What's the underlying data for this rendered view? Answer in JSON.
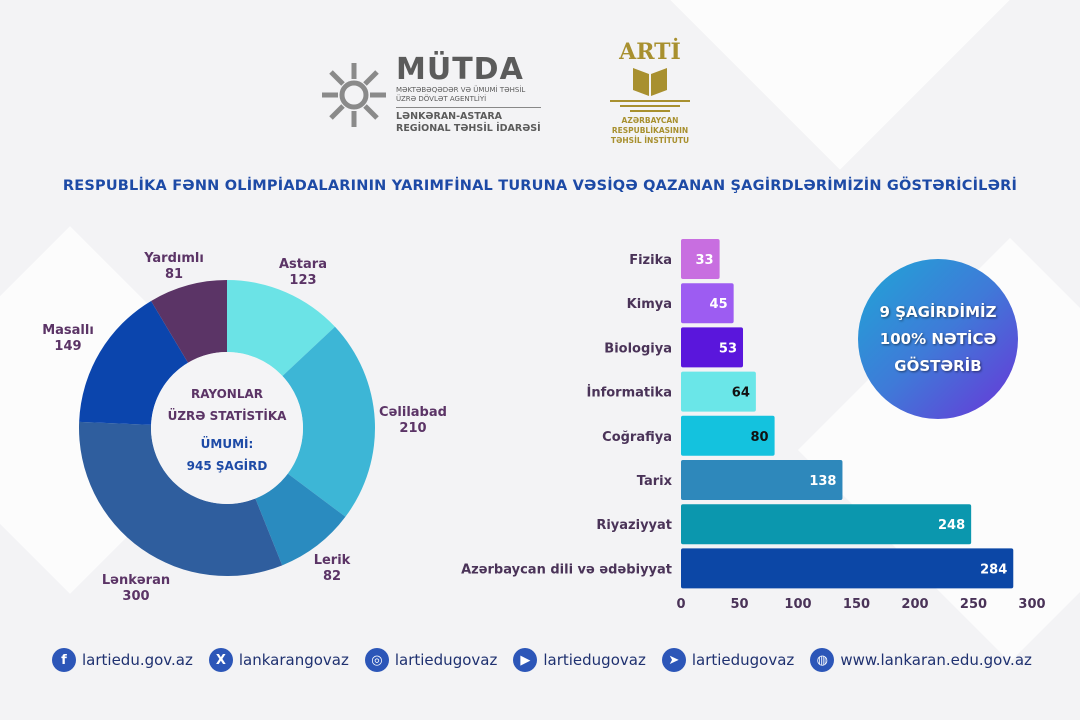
{
  "logos": {
    "mutda": {
      "name": "MÜTDA",
      "line1": "MƏKTƏBƏQƏDƏR VƏ ÜMUMİ TƏHSİL",
      "line2": "ÜZRƏ DÖVLƏT AGENTLİYİ",
      "line3": "LƏNKƏRAN-ASTARA",
      "line4": "REGİONAL TƏHSİL İDARƏSİ"
    },
    "arti": {
      "name": "ARTİ",
      "line1": "AZƏRBAYCAN RESPUBLİKASININ",
      "line2": "TƏHSİL İNSTİTUTU"
    }
  },
  "title": "RESPUBLİKA FƏNN OLİMPİADALARININ YARIMFİNAL TURUNA VƏSİQƏ QAZANAN ŞAGİRDLƏRİMİZİN GÖSTƏRİCİLƏRİ",
  "chart_data": [
    {
      "type": "pie",
      "donut": true,
      "center_text": {
        "line1": "RAYONLAR",
        "line2": "ÜZRƏ STATİSTİKA",
        "line3": "ÜMUMİ:",
        "line4": "945 ŞAGİRD"
      },
      "categories": [
        "Astara",
        "Cəlilabad",
        "Lerik",
        "Lənkəran",
        "Masallı",
        "Yardımlı"
      ],
      "values": [
        123,
        210,
        82,
        300,
        149,
        81
      ],
      "colors": [
        "#6be3e6",
        "#3db6d6",
        "#2a8bbf",
        "#2f5e9e",
        "#0b45ad",
        "#5b3466"
      ]
    },
    {
      "type": "bar",
      "orientation": "horizontal",
      "categories": [
        "Fizika",
        "Kimya",
        "Biologiya",
        "İnformatika",
        "Coğrafiya",
        "Tarix",
        "Riyaziyyat",
        "Azərbaycan dili və ədəbiyyat"
      ],
      "values": [
        33,
        45,
        53,
        64,
        80,
        138,
        248,
        284
      ],
      "colors": [
        "#c86ee0",
        "#9d5cf2",
        "#5a16dc",
        "#6ae6e8",
        "#14c2de",
        "#2e88bb",
        "#0b97ae",
        "#0c47a6"
      ],
      "xlim": [
        0,
        300
      ],
      "xticks": [
        "0",
        "50",
        "100",
        "150",
        "200",
        "250",
        "300"
      ],
      "grid": false
    }
  ],
  "badge": {
    "line1": "9 ŞAGİRDİMİZ",
    "line2": "100% NƏTİCƏ",
    "line3": "GÖSTƏRİB"
  },
  "footer": [
    {
      "icon": "facebook-icon",
      "glyph": "f",
      "text": "lartiedu.gov.az"
    },
    {
      "icon": "x-icon",
      "glyph": "X",
      "text": "lankarangovaz"
    },
    {
      "icon": "instagram-icon",
      "glyph": "◎",
      "text": "lartiedugovaz"
    },
    {
      "icon": "youtube-icon",
      "glyph": "▶",
      "text": "lartiedugovaz"
    },
    {
      "icon": "telegram-icon",
      "glyph": "➤",
      "text": "lartiedugovaz"
    },
    {
      "icon": "globe-icon",
      "glyph": "◍",
      "text": "www.lankaran.edu.gov.az"
    }
  ]
}
